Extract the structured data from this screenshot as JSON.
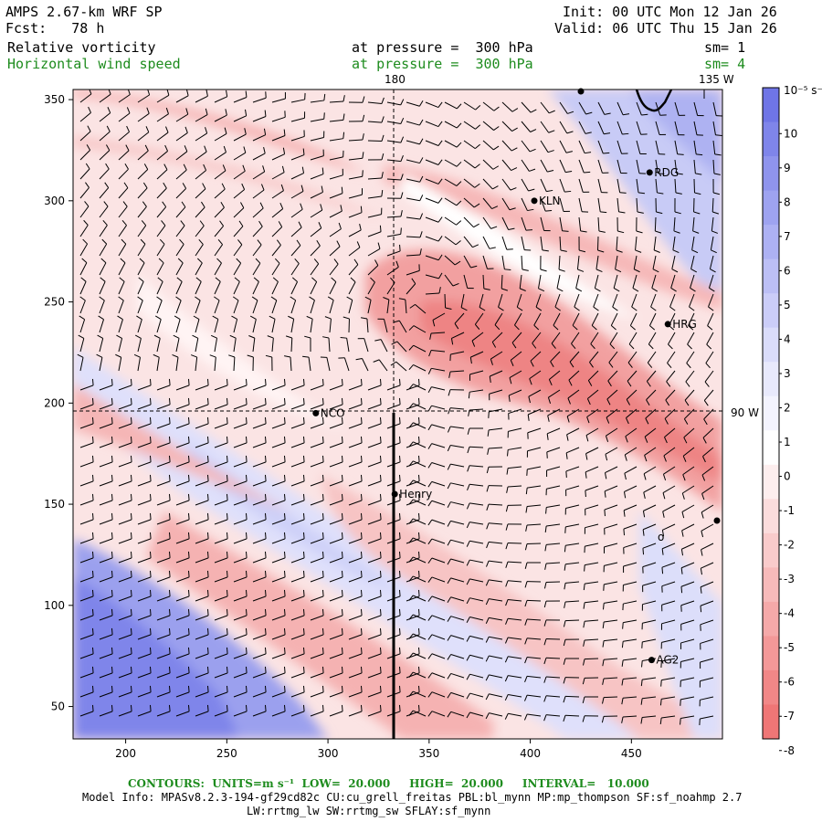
{
  "header": {
    "model": "AMPS 2.67-km WRF SP",
    "init": "Init: 00 UTC Mon 12 Jan 26",
    "fcst": "Fcst:   78 h",
    "valid": "Valid: 06 UTC Thu 15 Jan 26",
    "field1": "Relative vorticity",
    "field1_level": "at pressure =  300 hPa",
    "field1_sm": "sm= 1",
    "field2": "Horizontal wind speed",
    "field2_level": "at pressure =  300 hPa",
    "field2_sm": "sm= 4"
  },
  "map": {
    "x_ticks": [
      "200",
      "250",
      "300",
      "350",
      "400",
      "450"
    ],
    "y_ticks": [
      "350",
      "300",
      "250",
      "200",
      "150",
      "100",
      "50"
    ],
    "meridian_labels": {
      "lon180": "180",
      "lon135": "135 W",
      "lon90": "90 W"
    },
    "stations": [
      {
        "name": "RDG",
        "x": 459,
        "y": 314
      },
      {
        "name": "KLN",
        "x": 402,
        "y": 300
      },
      {
        "name": "HRG",
        "x": 468,
        "y": 239
      },
      {
        "name": "NCO",
        "x": 294,
        "y": 195
      },
      {
        "name": "Henry",
        "x": 333,
        "y": 155
      },
      {
        "name": "AG2",
        "x": 460,
        "y": 73
      }
    ],
    "extra_marker_note": "o"
  },
  "colorbar": {
    "units": "10⁻⁵ s⁻¹",
    "labels": [
      "10",
      "9",
      "8",
      "7",
      "6",
      "5",
      "4",
      "3",
      "2",
      "1",
      "0",
      "-1",
      "-2",
      "-3",
      "-4",
      "-5",
      "-6",
      "-7",
      "-8"
    ],
    "colors": [
      "#6f75e6",
      "#7f85ea",
      "#8f94ed",
      "#9ea3f0",
      "#adb1f3",
      "#bcbff5",
      "#cbcdf8",
      "#dadcfa",
      "#e8e9fc",
      "#f3f3fe",
      "#ffffff",
      "#fdeeee",
      "#fbdcdc",
      "#f9cbcb",
      "#f7baba",
      "#f5a9a9",
      "#f39898",
      "#f18787",
      "#ef7676"
    ]
  },
  "footer": {
    "contours": "CONTOURS:  UNITS=m s⁻¹  LOW=  20.000     HIGH=  20.000     INTERVAL=   10.000",
    "model_info": "Model Info: MPASv8.2.3-194-gf29cd82c CU:cu_grell_freitas PBL:bl_mynn MP:mp_thompson SF:sf_noahmp 2.7",
    "model_info2": "LW:rrtmg_lw SW:rrtmg_sw SFLAY:sf_mynn"
  }
}
